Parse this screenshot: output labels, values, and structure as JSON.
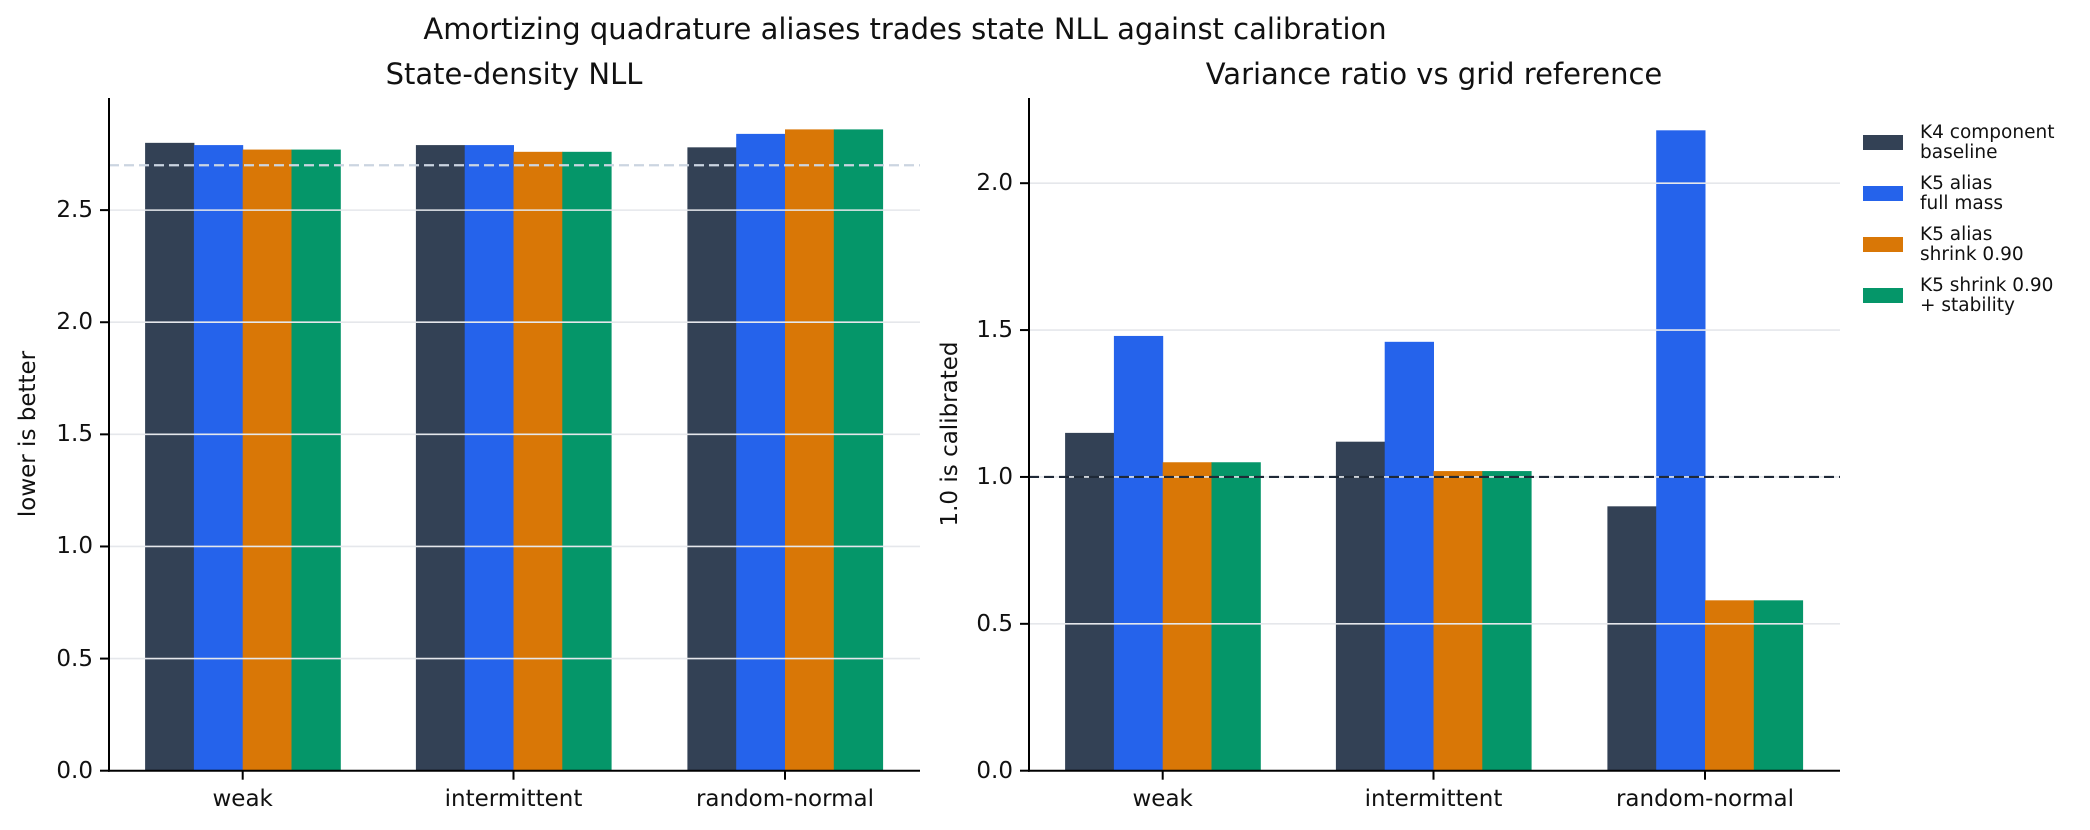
{
  "figure": {
    "suptitle": "Amortizing quadrature aliases trades state NLL against calibration"
  },
  "chart_data": [
    {
      "type": "bar",
      "title": "State-density NLL",
      "xlabel": "",
      "ylabel": "lower is better",
      "categories": [
        "weak",
        "intermittent",
        "random-normal"
      ],
      "series": [
        {
          "name": "K4 component baseline",
          "color": "#334155",
          "values": [
            2.8,
            2.79,
            2.78
          ]
        },
        {
          "name": "K5 alias full mass",
          "color": "#2563eb",
          "values": [
            2.79,
            2.79,
            2.84
          ]
        },
        {
          "name": "K5 alias shrink 0.90",
          "color": "#d97706",
          "values": [
            2.77,
            2.76,
            2.86
          ]
        },
        {
          "name": "K5 shrink 0.90 + stability",
          "color": "#059669",
          "values": [
            2.77,
            2.76,
            2.86
          ]
        }
      ],
      "ylim": [
        0,
        3.0
      ],
      "yticks": [
        0.0,
        0.5,
        1.0,
        1.5,
        2.0,
        2.5
      ],
      "ytick_labels": [
        "0.0",
        "0.5",
        "1.0",
        "1.5",
        "2.0",
        "2.5"
      ],
      "reference_line": {
        "y": 2.7,
        "style": "dashed",
        "color": "#cbd5e1"
      },
      "grid": "y"
    },
    {
      "type": "bar",
      "title": "Variance ratio vs grid reference",
      "xlabel": "",
      "ylabel": "1.0 is calibrated",
      "categories": [
        "weak",
        "intermittent",
        "random-normal"
      ],
      "series": [
        {
          "name": "K4 component baseline",
          "color": "#334155",
          "values": [
            1.15,
            1.12,
            0.9
          ]
        },
        {
          "name": "K5 alias full mass",
          "color": "#2563eb",
          "values": [
            1.48,
            1.46,
            2.18
          ]
        },
        {
          "name": "K5 alias shrink 0.90",
          "color": "#d97706",
          "values": [
            1.05,
            1.02,
            0.58
          ]
        },
        {
          "name": "K5 shrink 0.90 + stability",
          "color": "#059669",
          "values": [
            1.05,
            1.02,
            0.58
          ]
        }
      ],
      "ylim": [
        0,
        2.29
      ],
      "yticks": [
        0.0,
        0.5,
        1.0,
        1.5,
        2.0
      ],
      "ytick_labels": [
        "0.0",
        "0.5",
        "1.0",
        "1.5",
        "2.0"
      ],
      "reference_line": {
        "y": 1.0,
        "style": "dashed",
        "color": "#1f2937"
      },
      "grid": "y",
      "legend_position": "outside right, upper"
    }
  ],
  "legend": {
    "items": [
      {
        "label": "K4 component\nbaseline",
        "color": "#334155"
      },
      {
        "label": "K5 alias\nfull mass",
        "color": "#2563eb"
      },
      {
        "label": "K5 alias\nshrink 0.90",
        "color": "#d97706"
      },
      {
        "label": "K5 shrink 0.90\n+ stability",
        "color": "#059669"
      }
    ]
  }
}
